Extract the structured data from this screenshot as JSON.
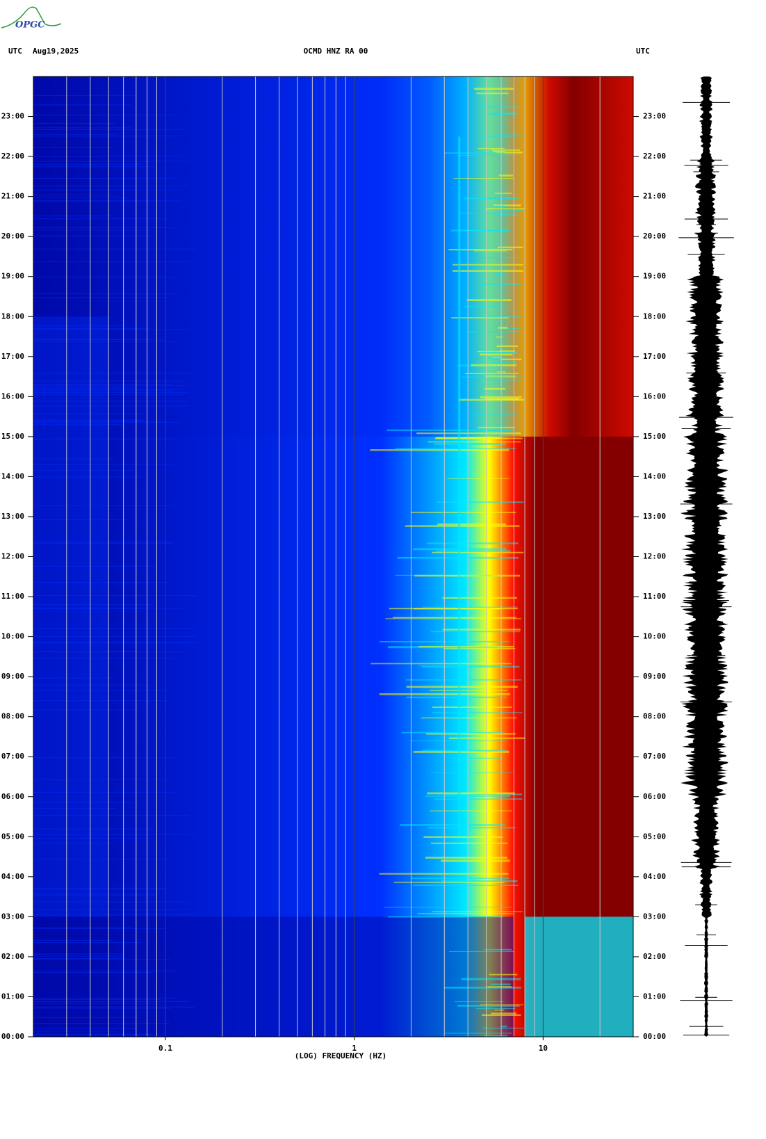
{
  "logo": "OPGC",
  "chart_data": {
    "type": "spectrogram",
    "header_left": "UTC",
    "date": "Aug19,2025",
    "title": "OCMD HNZ RA 00",
    "header_right": "UTC",
    "xlabel": "(LOG) FREQUENCY (HZ)",
    "xscale": "log",
    "xlim": [
      0.02,
      30
    ],
    "xticks": [
      0.1,
      1,
      10
    ],
    "xminorticks": [
      0.03,
      0.04,
      0.05,
      0.06,
      0.07,
      0.08,
      0.09,
      0.2,
      0.3,
      0.4,
      0.5,
      0.6,
      0.7,
      0.8,
      0.9,
      2,
      3,
      4,
      5,
      6,
      7,
      8,
      9,
      20
    ],
    "ylim": [
      0,
      24
    ],
    "yticks": [
      {
        "value": 0,
        "label": "00:00"
      },
      {
        "value": 1,
        "label": "01:00"
      },
      {
        "value": 2,
        "label": "02:00"
      },
      {
        "value": 3,
        "label": "03:00"
      },
      {
        "value": 4,
        "label": "04:00"
      },
      {
        "value": 5,
        "label": "05:00"
      },
      {
        "value": 6,
        "label": "06:00"
      },
      {
        "value": 7,
        "label": "07:00"
      },
      {
        "value": 8,
        "label": "08:00"
      },
      {
        "value": 9,
        "label": "09:00"
      },
      {
        "value": 10,
        "label": "10:00"
      },
      {
        "value": 11,
        "label": "11:00"
      },
      {
        "value": 12,
        "label": "12:00"
      },
      {
        "value": 13,
        "label": "13:00"
      },
      {
        "value": 14,
        "label": "14:00"
      },
      {
        "value": 15,
        "label": "15:00"
      },
      {
        "value": 16,
        "label": "16:00"
      },
      {
        "value": 17,
        "label": "17:00"
      },
      {
        "value": 18,
        "label": "18:00"
      },
      {
        "value": 19,
        "label": "19:00"
      },
      {
        "value": 20,
        "label": "20:00"
      },
      {
        "value": 21,
        "label": "21:00"
      },
      {
        "value": 22,
        "label": "22:00"
      },
      {
        "value": 23,
        "label": "23:00"
      }
    ],
    "colors": [
      "#0008a8",
      "#0030ff",
      "#00e8ff",
      "#ffff00",
      "#ff1000",
      "#840000"
    ],
    "grid": true
  }
}
